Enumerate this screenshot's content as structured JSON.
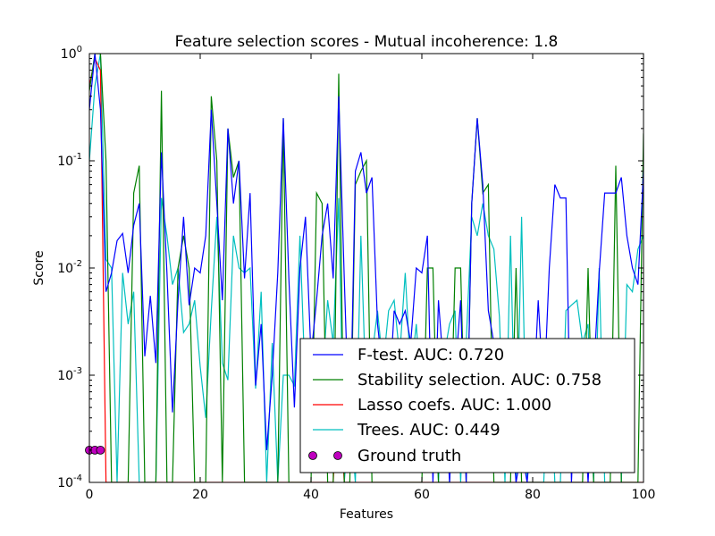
{
  "chart_data": {
    "type": "line",
    "title": "Feature selection scores - Mutual incoherence: 1.8",
    "xlabel": "Features",
    "ylabel": "Score",
    "xlim": [
      0,
      100
    ],
    "ylim": [
      0.0001,
      1
    ],
    "y_scale": "log",
    "x_ticks": [
      "0",
      "20",
      "40",
      "60",
      "80",
      "100"
    ],
    "y_ticks": [
      {
        "base": "10",
        "exp": "-4"
      },
      {
        "base": "10",
        "exp": "-3"
      },
      {
        "base": "10",
        "exp": "-2"
      },
      {
        "base": "10",
        "exp": "-1"
      },
      {
        "base": "10",
        "exp": "0"
      }
    ],
    "legend_position": "lower-right",
    "series": [
      {
        "name": "F-test. AUC: 0.720",
        "color": "#0000ff",
        "y": [
          0.3,
          1,
          0.3,
          0.006,
          0.009,
          0.018,
          0.021,
          0.009,
          0.025,
          0.04,
          0.0015,
          0.0055,
          0.0013,
          0.12,
          0.009,
          0.00045,
          0.005,
          0.03,
          0.0045,
          0.01,
          0.009,
          0.02,
          0.3,
          0.04,
          0.005,
          0.2,
          0.04,
          0.1,
          0.008,
          0.05,
          0.0008,
          0.003,
          0.0002,
          0.001,
          0.009,
          0.25,
          0.008,
          0.0005,
          0.01,
          0.03,
          0.0015,
          0.005,
          0.02,
          0.04,
          0.008,
          0.4,
          0.008,
          0.0002,
          0.08,
          0.12,
          0.05,
          0.07,
          0.003,
          0.001,
          0.0005,
          0.004,
          0.003,
          0.004,
          0.002,
          0.01,
          0.009,
          0.02,
          0.0001,
          0.005,
          0.001,
          0.0001,
          0.001,
          0.005,
          0.0001,
          0.04,
          0.25,
          0.06,
          0.004,
          0.002,
          0.0005,
          0.001,
          0.0005,
          0.0001,
          0.0002,
          0.0001,
          0.0004,
          0.005,
          0.0006,
          0.01,
          0.06,
          0.045,
          0.045,
          0.0001,
          0.002,
          0.0008,
          0.0001,
          0.001,
          0.009,
          0.05,
          0.05,
          0.05,
          0.07,
          0.02,
          0.01,
          0.007,
          0.08
        ]
      },
      {
        "name": "Stability selection. AUC: 0.758",
        "color": "#008000",
        "y": [
          0.45,
          1,
          1,
          0.1,
          0.0001,
          0.0001,
          0.0001,
          0.0001,
          0.05,
          0.09,
          0.0001,
          0.0001,
          0.0001,
          0.45,
          0.0001,
          0.0001,
          0.01,
          0.02,
          0.01,
          0.0001,
          0.0001,
          0.0001,
          0.4,
          0.1,
          0.0001,
          0.2,
          0.07,
          0.1,
          0.0001,
          0.0001,
          0.0001,
          0.0001,
          0.0001,
          0.0001,
          0.0001,
          0.25,
          0.0001,
          0.0001,
          0.0001,
          0.0001,
          0.0001,
          0.05,
          0.04,
          0.0001,
          0.0001,
          0.65,
          0.0001,
          0.0001,
          0.06,
          0.08,
          0.1,
          0.0001,
          0.0001,
          0.0001,
          0.0001,
          0.0001,
          0.0001,
          0.0001,
          0.0001,
          0.0001,
          0.0001,
          0.01,
          0.01,
          0.0001,
          0.0001,
          0.0001,
          0.01,
          0.01,
          0.0001,
          0.04,
          0.25,
          0.05,
          0.06,
          0.0001,
          0.0001,
          0.0001,
          0.0001,
          0.01,
          0.0001,
          0.0001,
          0.0001,
          0.0001,
          0.0001,
          0.0001,
          0.0001,
          0.0001,
          0.0001,
          0.0001,
          0.0001,
          0.0001,
          0.01,
          0.0001,
          0.0001,
          0.0001,
          0.0001,
          0.09,
          0.0001,
          0.0001,
          0.0001,
          0.0001,
          0.18
        ]
      },
      {
        "name": "Lasso coefs. AUC: 1.000",
        "color": "#ff0000",
        "y": [
          0.5,
          0.9,
          0.7,
          0.0001,
          0.0001,
          0.0001,
          0.0001,
          0.0001,
          0.0001,
          0.0001,
          0.0001,
          0.0001,
          0.0001,
          0.0001,
          0.0001,
          0.0001,
          0.0001,
          0.0001,
          0.0001,
          0.0001,
          0.0001,
          0.0001,
          0.0001,
          0.0001,
          0.0001,
          0.0001,
          0.0001,
          0.0001,
          0.0001,
          0.0001,
          0.0001,
          0.0001,
          0.0001,
          0.0001,
          0.0001,
          0.0001,
          0.0001,
          0.0001,
          0.0001,
          0.0001,
          0.0001,
          0.0001,
          0.0001,
          0.0001,
          0.0001,
          0.0008,
          0.0001,
          0.0001,
          0.0001,
          0.0001,
          0.0001,
          0.0001,
          0.0001,
          0.0001,
          0.0001,
          0.0001,
          0.0001,
          0.0001,
          0.0001,
          0.0001,
          0.0001,
          0.0001,
          0.0001,
          0.0001,
          0.0001,
          0.0001,
          0.0001,
          0.0001,
          0.0001,
          0.0001,
          0.0001,
          0.0001,
          0.0001,
          0.0001,
          0.0001,
          0.0001,
          0.0001,
          0.0001,
          0.0001,
          0.0001,
          0.0001,
          0.0001,
          0.0001,
          0.0001,
          0.0001,
          0.0001,
          0.0001,
          0.0001,
          0.0001,
          0.0001,
          0.0001,
          0.0001,
          0.0001,
          0.0001,
          0.0001,
          0.0001,
          0.0001,
          0.0001,
          0.0001,
          0.0001,
          0.0001
        ]
      },
      {
        "name": "Trees. AUC: 0.449",
        "color": "#00bfbf",
        "y": [
          0.1,
          0.5,
          1,
          0.012,
          0.01,
          0.0001,
          0.009,
          0.003,
          0.006,
          0.0001,
          0.0001,
          0.0001,
          0.0001,
          0.045,
          0.02,
          0.007,
          0.01,
          0.0025,
          0.003,
          0.005,
          0.0012,
          0.0004,
          0.004,
          0.03,
          0.0013,
          0.0009,
          0.02,
          0.01,
          0.009,
          0.01,
          0.00075,
          0.006,
          0.0001,
          0.002,
          0.0001,
          0.001,
          0.001,
          0.0008,
          0.02,
          0.0007,
          0.001,
          0.00075,
          0.0008,
          0.005,
          0.002,
          0.045,
          0.0001,
          0.0005,
          0.0001,
          0.02,
          0.0005,
          0.0015,
          0.004,
          0.0012,
          0.004,
          0.005,
          0.0015,
          0.009,
          0.001,
          0.003,
          0.0005,
          0.002,
          0.0009,
          0.0001,
          0.0015,
          0.003,
          0.004,
          0.0001,
          0.002,
          0.03,
          0.02,
          0.04,
          0.02,
          0.015,
          0.0035,
          0.0001,
          0.02,
          0.0001,
          0.03,
          0.0001,
          0.0001,
          0.0001,
          0.0001,
          0.002,
          0.0001,
          0.0001,
          0.004,
          0.0045,
          0.005,
          0.002,
          0.003,
          0.0001,
          0.01,
          0.0001,
          0.0001,
          0.0001,
          0.0001,
          0.007,
          0.006,
          0.015,
          0.02
        ]
      },
      {
        "name": "Ground truth",
        "color": "#bf00bf",
        "marker": "circle",
        "points": [
          {
            "x": 0,
            "y": 0.0002
          },
          {
            "x": 1,
            "y": 0.0002
          },
          {
            "x": 2,
            "y": 0.0002
          }
        ]
      }
    ]
  }
}
